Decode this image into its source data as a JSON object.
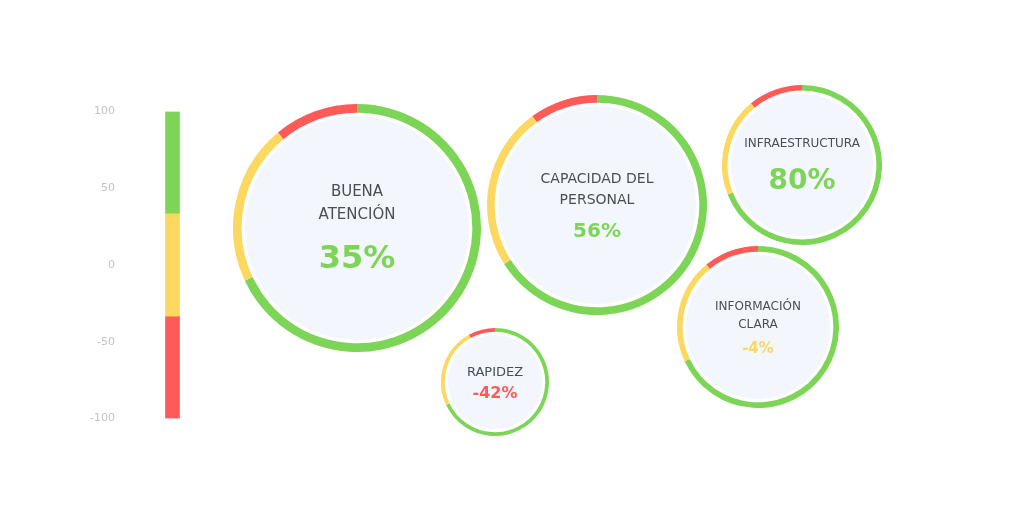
{
  "chart_data": [
    {
      "type": "bar",
      "categories": [
        null
      ],
      "stacked": true,
      "ylim": [
        -100,
        100
      ],
      "yticks": [
        -100,
        -50,
        0,
        50,
        100
      ],
      "grid": false,
      "legend": false,
      "series": [
        {
          "color": "#fcd860",
          "values": [
            -33.3
          ]
        },
        {
          "color": "#fd5a58",
          "values": [
            -66.7
          ]
        },
        {
          "color": "#fcd860",
          "values": [
            33.3
          ]
        },
        {
          "color": "#7dd557",
          "values": [
            66.7
          ]
        }
      ]
    },
    {
      "type": "donut",
      "title": "BUENA ATENCIÓN",
      "categories": [
        null,
        null,
        null
      ],
      "values": [
        68,
        21,
        11
      ],
      "colors": [
        "#7dd557",
        "#fcd860",
        "#fd5a58"
      ],
      "annotations": [
        "35%"
      ]
    },
    {
      "type": "donut",
      "title": "CAPACIDAD DEL PERSONAL",
      "categories": [
        null,
        null,
        null
      ],
      "values": [
        66,
        24,
        10
      ],
      "colors": [
        "#7dd557",
        "#fcd860",
        "#fd5a58"
      ],
      "annotations": [
        "56%"
      ]
    },
    {
      "type": "donut",
      "title": "INFRAESTRUCTURA",
      "categories": [
        null,
        null,
        null
      ],
      "values": [
        69,
        20,
        11
      ],
      "colors": [
        "#7dd557",
        "#fcd860",
        "#fd5a58"
      ],
      "annotations": [
        "80%"
      ]
    },
    {
      "type": "donut",
      "title": "RAPIDEZ",
      "categories": [
        null,
        null,
        null
      ],
      "values": [
        68,
        24,
        8
      ],
      "colors": [
        "#7dd557",
        "#fcd860",
        "#fd5a58"
      ],
      "annotations": [
        "-42%"
      ]
    },
    {
      "type": "donut",
      "title": "INFORMACIÓN CLARA",
      "categories": [
        null,
        null,
        null
      ],
      "values": [
        68,
        21,
        11
      ],
      "colors": [
        "#7dd557",
        "#fcd860",
        "#fd5a58"
      ],
      "annotations": [
        "-4%"
      ]
    }
  ]
}
